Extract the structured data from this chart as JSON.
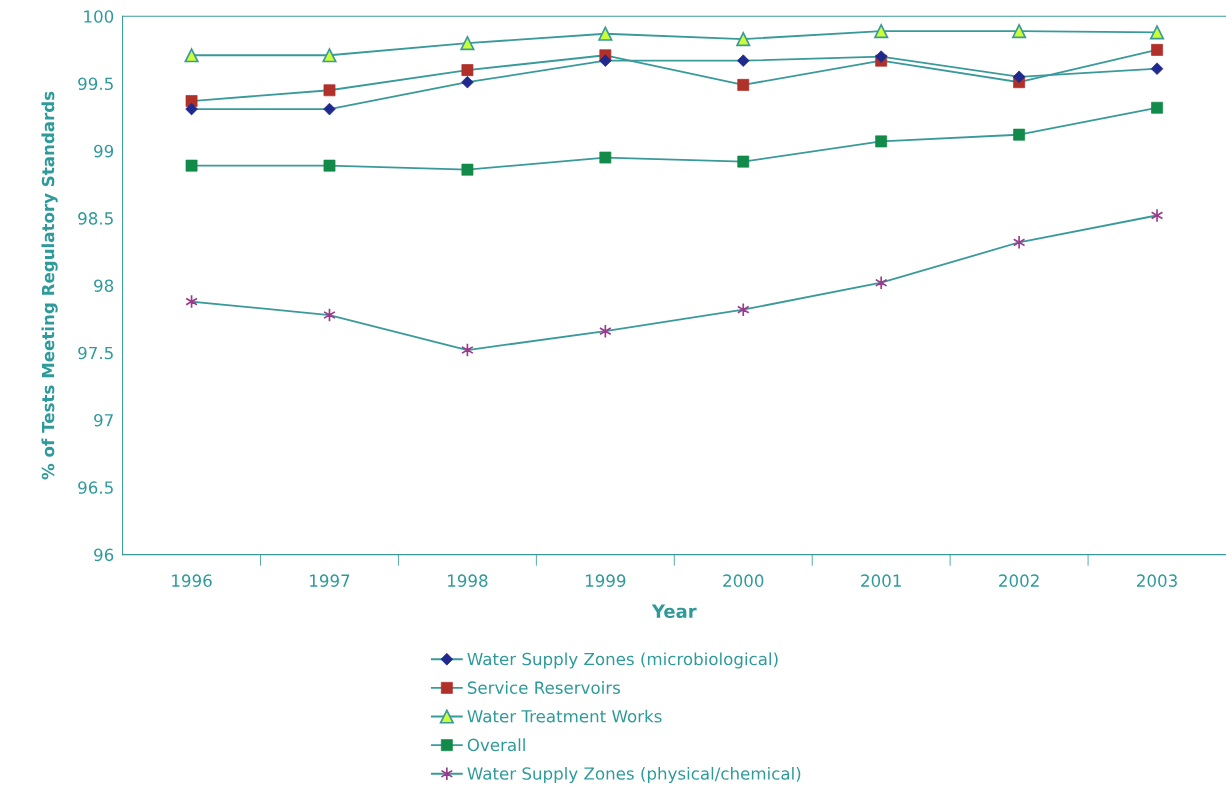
{
  "chart_data": {
    "type": "line",
    "xlabel": "Year",
    "ylabel": "% of Tests Meeting Regulatory Standards",
    "categories": [
      "1996",
      "1997",
      "1998",
      "1999",
      "2000",
      "2001",
      "2002",
      "2003"
    ],
    "series": [
      {
        "name": "Water Supply Zones (microbiological)",
        "color": "#1f2a8c",
        "marker": "diamond",
        "values": [
          99.31,
          99.31,
          99.51,
          99.67,
          99.67,
          99.7,
          99.55,
          99.61
        ]
      },
      {
        "name": "Service Reservoirs",
        "color": "#b0302a",
        "marker": "square",
        "values": [
          99.37,
          99.45,
          99.6,
          99.71,
          99.49,
          99.67,
          99.51,
          99.75
        ]
      },
      {
        "name": "Water Treatment Works",
        "color": "#ccff33",
        "marker": "triangle",
        "values": [
          99.71,
          99.71,
          99.8,
          99.87,
          99.83,
          99.89,
          99.89,
          99.88
        ]
      },
      {
        "name": "Overall",
        "color": "#128a4a",
        "marker": "square",
        "values": [
          98.89,
          98.89,
          98.86,
          98.95,
          98.92,
          99.07,
          99.12,
          99.32
        ]
      },
      {
        "name": "Water Supply Zones (physical/chemical)",
        "color": "#9a3a8a",
        "marker": "cross",
        "values": [
          97.88,
          97.78,
          97.52,
          97.66,
          97.82,
          98.02,
          98.32,
          98.52
        ]
      }
    ],
    "ylim": [
      96,
      100
    ],
    "yticks": [
      96,
      96.5,
      97,
      97.5,
      98,
      98.5,
      99,
      99.5,
      100
    ],
    "grid": false,
    "legend": "bottom"
  }
}
